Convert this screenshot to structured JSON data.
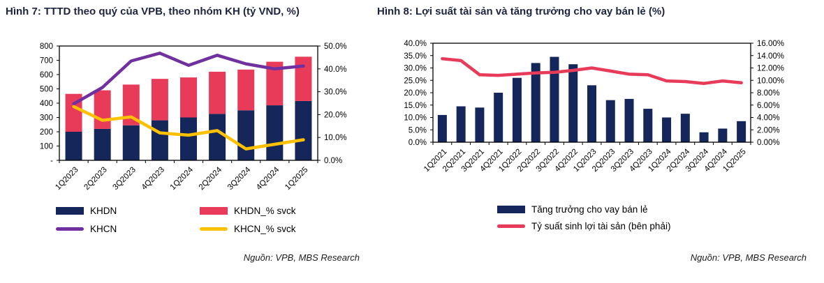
{
  "chart_data": [
    {
      "id": "fig7",
      "type": "bar",
      "subtype": "stacked-bars-with-lines-dual-axis",
      "title": "Hình 7: TTTD theo quý của VPB, theo nhóm KH (tỷ VND, %)",
      "source": "Nguồn: VPB, MBS Research",
      "categories": [
        "1Q2023",
        "2Q2023",
        "3Q2023",
        "4Q2023",
        "1Q2024",
        "2Q2024",
        "3Q2024",
        "4Q2024",
        "1Q2025"
      ],
      "left_axis": {
        "min": 0,
        "max": 800,
        "ticks": [
          "800",
          "700",
          "600",
          "500",
          "400",
          "300",
          "200",
          "100",
          "-"
        ]
      },
      "right_axis": {
        "min": 0,
        "max": 50,
        "ticks": [
          "50.0%",
          "40.0%",
          "30.0%",
          "20.0%",
          "10.0%",
          "0.0%"
        ]
      },
      "bar_series": [
        {
          "name": "KHDN",
          "color": "#14265a",
          "axis": "left",
          "values": [
            200,
            220,
            245,
            280,
            300,
            325,
            350,
            385,
            415
          ]
        },
        {
          "name": "KHDN_% svck",
          "color": "#e83a59",
          "axis": "left",
          "stacked_on": "KHDN",
          "values": [
            265,
            270,
            285,
            290,
            280,
            295,
            285,
            305,
            310
          ],
          "stack_totals": [
            465,
            490,
            530,
            570,
            580,
            620,
            635,
            690,
            725
          ]
        }
      ],
      "line_series": [
        {
          "name": "KHCN",
          "color": "#7030a0",
          "axis": "left",
          "values": [
            395,
            510,
            695,
            750,
            665,
            735,
            675,
            640,
            660
          ]
        },
        {
          "name": "KHCN_% svck",
          "color": "#ffc000",
          "axis": "right",
          "values": [
            23.5,
            17.5,
            19,
            12,
            11,
            13,
            5,
            7,
            9
          ]
        }
      ],
      "legend": [
        {
          "label": "KHDN",
          "swatch": "rect",
          "color": "#14265a"
        },
        {
          "label": "KHDN_% svck",
          "swatch": "rect",
          "color": "#e83a59"
        },
        {
          "label": "KHCN",
          "swatch": "line",
          "color": "#7030a0"
        },
        {
          "label": "KHCN_% svck",
          "swatch": "line",
          "color": "#ffc000"
        }
      ],
      "legend_position": "bottom-two-columns",
      "grid": false
    },
    {
      "id": "fig8",
      "type": "bar",
      "subtype": "bars-with-line-dual-axis",
      "title": "Hình 8: Lợi suất tài sản và tăng trưởng cho vay bán lẻ (%)",
      "source": "Nguồn: VPB, MBS Research",
      "categories": [
        "1Q2021",
        "2Q2021",
        "3Q2021",
        "4Q2021",
        "1Q2022",
        "2Q2022",
        "3Q2022",
        "4Q2022",
        "1Q2023",
        "2Q2023",
        "3Q2023",
        "4Q2023",
        "1Q2024",
        "2Q2024",
        "3Q2024",
        "4Q2024",
        "1Q2025"
      ],
      "left_axis": {
        "min": 0,
        "max": 40,
        "ticks": [
          "40.0%",
          "35.0%",
          "30.0%",
          "25.0%",
          "20.0%",
          "15.0%",
          "10.0%",
          "5.0%",
          "0.0%"
        ]
      },
      "right_axis": {
        "min": 0,
        "max": 16,
        "ticks": [
          "16.00%",
          "14.00%",
          "12.00%",
          "10.00%",
          "8.00%",
          "6.00%",
          "4.00%",
          "2.00%",
          "0.00%"
        ]
      },
      "bar_series": [
        {
          "name": "Tăng trưởng cho vay bán lẻ",
          "color": "#14265a",
          "axis": "left",
          "values": [
            11,
            14.5,
            14,
            20,
            26,
            32,
            34.5,
            31.5,
            23,
            17,
            17.5,
            13.5,
            10,
            11.5,
            4,
            5.5,
            8.5
          ]
        }
      ],
      "line_series": [
        {
          "name": "Tỷ suất sinh lợi tài sản (bên phải)",
          "color": "#e83a59",
          "axis": "right",
          "values": [
            13.5,
            13.2,
            10.9,
            10.8,
            11.0,
            11.2,
            11.3,
            11.6,
            12.0,
            11.5,
            11.0,
            10.9,
            9.9,
            9.8,
            9.5,
            9.9,
            9.6
          ]
        }
      ],
      "legend": [
        {
          "label": "Tăng trưởng cho vay bán lẻ",
          "swatch": "rect",
          "color": "#14265a"
        },
        {
          "label": "Tỷ suất sinh lợi tài sản (bên phải)",
          "swatch": "line",
          "color": "#e83a59"
        }
      ],
      "legend_position": "bottom-stacked",
      "grid": false
    }
  ],
  "colors": {
    "navy": "#14265a",
    "red": "#e83a59",
    "purple": "#7030a0",
    "yellow": "#ffc000",
    "axis": "#000000",
    "title_text": "#1d2440",
    "background": "#ffffff"
  }
}
